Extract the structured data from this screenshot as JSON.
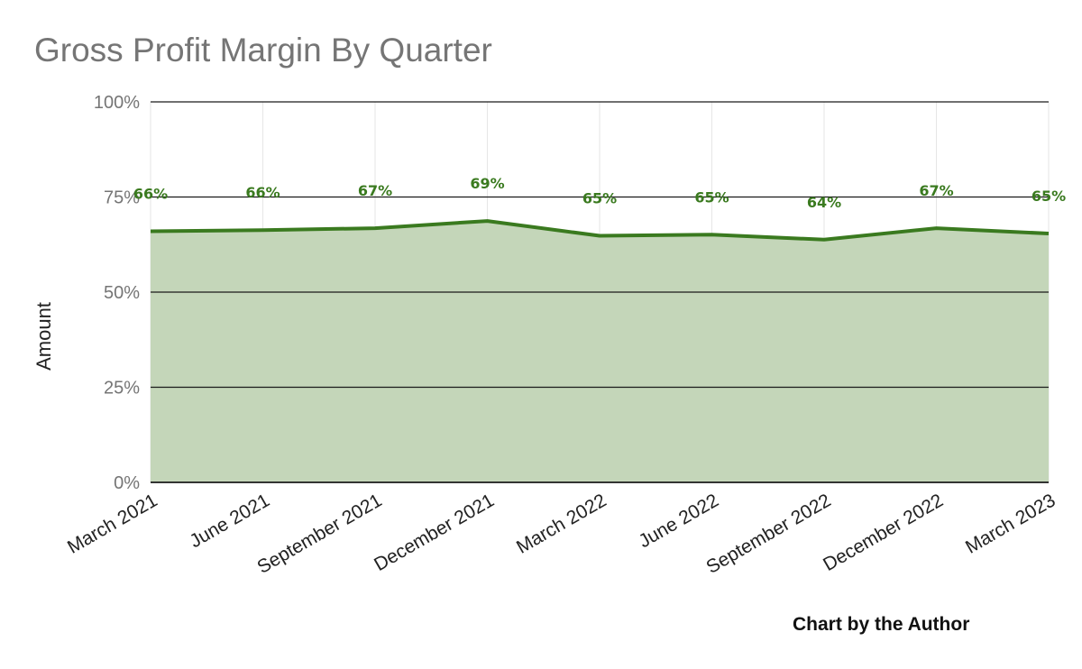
{
  "chart_data": {
    "type": "area",
    "title": "Gross Profit Margin By Quarter",
    "ylabel": "Amount",
    "xlabel": "",
    "categories": [
      "March 2021",
      "June 2021",
      "September 2021",
      "December 2021",
      "March 2022",
      "June 2022",
      "September 2022",
      "December 2022",
      "March 2023"
    ],
    "series": [
      {
        "values": [
          66,
          66.3,
          66.8,
          68.7,
          64.8,
          65.1,
          63.8,
          66.8,
          65.4
        ],
        "labels": [
          "66%",
          "66%",
          "67%",
          "69%",
          "65%",
          "65%",
          "64%",
          "67%",
          "65%"
        ]
      }
    ],
    "ylim": [
      0,
      100
    ],
    "yticks": [
      0,
      25,
      50,
      75,
      100
    ],
    "ytick_labels": [
      "0%",
      "25%",
      "50%",
      "75%",
      "100%"
    ],
    "grid": true,
    "colors": {
      "line": "#3a7a1f",
      "fill": "#c4d6b9",
      "label": "#3a7a1f"
    },
    "credit": "Chart by the Author"
  }
}
